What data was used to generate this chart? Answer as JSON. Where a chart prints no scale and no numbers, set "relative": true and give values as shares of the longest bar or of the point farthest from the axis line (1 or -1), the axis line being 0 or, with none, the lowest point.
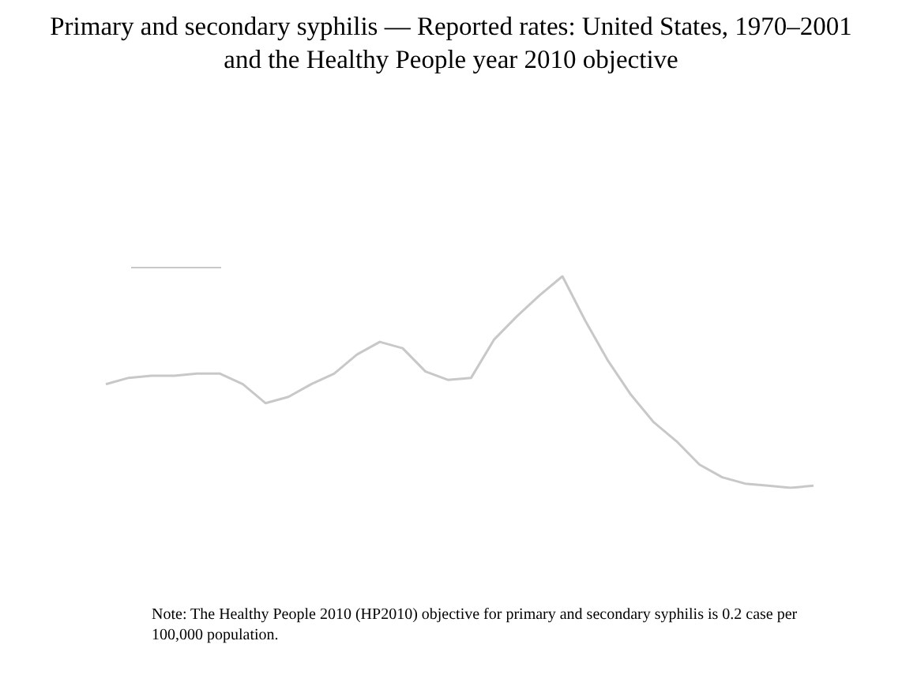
{
  "chart_data": {
    "type": "line",
    "title": "Primary and secondary syphilis — Reported rates: United States, 1970–2001 and the Healthy People year 2010 objective",
    "relative": true,
    "marker": "none",
    "categories": [
      null,
      null,
      null,
      null,
      null,
      null,
      null,
      null,
      null,
      null,
      null,
      null,
      null,
      null,
      null,
      null,
      null,
      null,
      null,
      null,
      null,
      null,
      null,
      null,
      null,
      null,
      null,
      null,
      null,
      null,
      null,
      null
    ],
    "series": [
      {
        "color": "#c8c8c8",
        "values": [
          0.49,
          0.52,
          0.53,
          0.53,
          0.54,
          0.54,
          0.49,
          0.4,
          0.43,
          0.49,
          0.54,
          0.63,
          0.69,
          0.66,
          0.55,
          0.51,
          0.52,
          0.7,
          0.81,
          0.91,
          1,
          0.79,
          0.6,
          0.44,
          0.31,
          0.22,
          0.11,
          0.05,
          0.02,
          0.01,
          0,
          0.01
        ]
      }
    ],
    "annotations": [
      "Note: The Healthy People 2010 (HP2010) objective for primary and secondary syphilis is 0.2 case per 100,000 population."
    ]
  }
}
